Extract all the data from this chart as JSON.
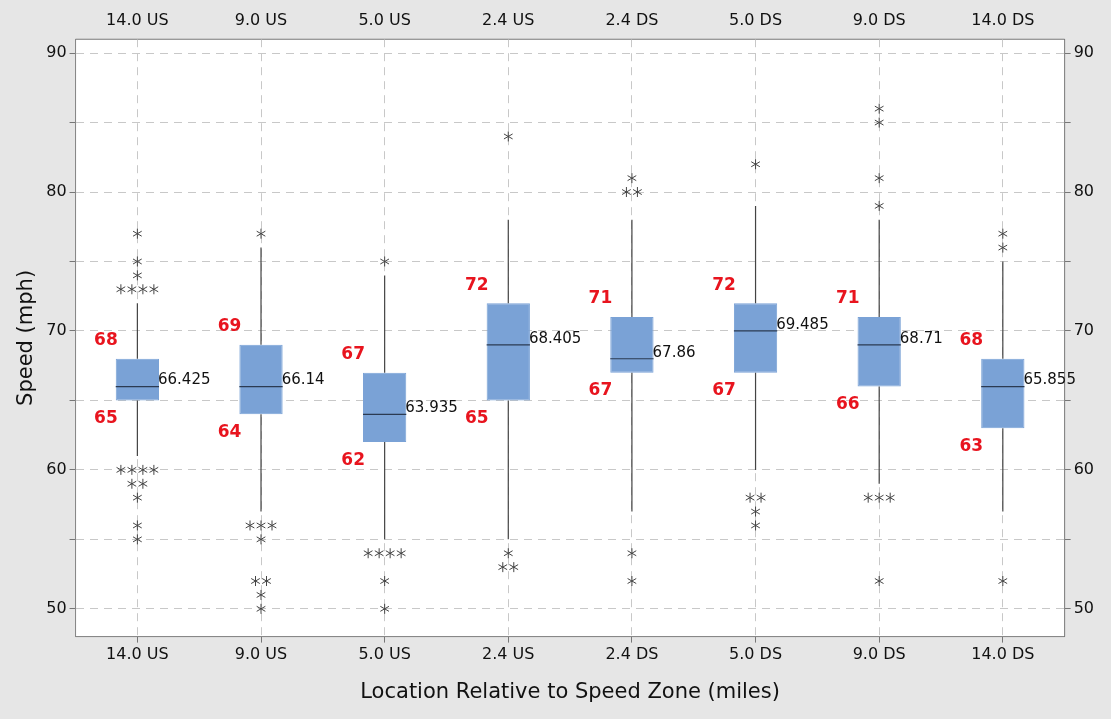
{
  "chart_data": {
    "type": "box",
    "categories": [
      "14.0 US",
      "9.0 US",
      "5.0 US",
      "2.4 US",
      "2.4 DS",
      "5.0 DS",
      "9.0 DS",
      "14.0 DS"
    ],
    "xlabel": "Location Relative to Speed Zone (miles)",
    "ylabel": "Speed (mph)",
    "color": "#7aa2d6",
    "boxes": [
      {
        "low": 61,
        "q1": 65,
        "median": 66,
        "q3": 68,
        "high": 72,
        "outliers": [
          77,
          75,
          74,
          73,
          73,
          73,
          73,
          60,
          60,
          60,
          60,
          59,
          59,
          58,
          56,
          55
        ]
      },
      {
        "low": 57,
        "q1": 64,
        "median": 66,
        "q3": 69,
        "high": 76,
        "outliers": [
          77,
          56,
          56,
          56,
          55,
          52,
          52,
          51,
          50
        ]
      },
      {
        "low": 55,
        "q1": 62,
        "median": 64,
        "q3": 67,
        "high": 74,
        "outliers": [
          75,
          54,
          54,
          54,
          54,
          52,
          50
        ]
      },
      {
        "low": 55,
        "q1": 65,
        "median": 69,
        "q3": 72,
        "high": 78,
        "outliers": [
          84,
          54,
          53,
          53
        ]
      },
      {
        "low": 57,
        "q1": 67,
        "median": 68,
        "q3": 71,
        "high": 78,
        "outliers": [
          81,
          80,
          80,
          54,
          52
        ]
      },
      {
        "low": 60,
        "q1": 67,
        "median": 70,
        "q3": 72,
        "high": 79,
        "outliers": [
          82,
          58,
          58,
          57,
          56
        ]
      },
      {
        "low": 59,
        "q1": 66,
        "median": 69,
        "q3": 71,
        "high": 78,
        "outliers": [
          86,
          85,
          81,
          79,
          58,
          58,
          58,
          52
        ]
      },
      {
        "low": 57,
        "q1": 63,
        "median": 66,
        "q3": 68,
        "high": 75,
        "outliers": [
          77,
          76,
          52
        ]
      }
    ],
    "annotations": [
      {
        "text": "68",
        "x": "14.0 US",
        "y": 68
      },
      {
        "text": "65",
        "x": "14.0 US",
        "y": 65
      },
      "66.425",
      {
        "text": "69",
        "x": "9.0 US",
        "y": 69
      },
      {
        "text": "64",
        "x": "9.0 US",
        "y": 64
      },
      "66.14",
      {
        "text": "67",
        "x": "5.0 US",
        "y": 67
      },
      {
        "text": "62",
        "x": "5.0 US",
        "y": 62
      },
      "63.935",
      {
        "text": "72",
        "x": "2.4 US",
        "y": 72
      },
      {
        "text": "65",
        "x": "2.4 US",
        "y": 65
      },
      "68.405",
      {
        "text": "71",
        "x": "2.4 DS",
        "y": 71
      },
      {
        "text": "67",
        "x": "2.4 DS",
        "y": 67
      },
      "67.86",
      {
        "text": "72",
        "x": "5.0 DS",
        "y": 72
      },
      {
        "text": "67",
        "x": "5.0 DS",
        "y": 67
      },
      "69.485",
      {
        "text": "71",
        "x": "9.0 DS",
        "y": 71
      },
      {
        "text": "66",
        "x": "9.0 DS",
        "y": 66
      },
      "68.71",
      {
        "text": "68",
        "x": "14.0 DS",
        "y": 68
      },
      {
        "text": "63",
        "x": "14.0 DS",
        "y": 63
      },
      "65.855"
    ],
    "marker": "star",
    "ylim": [
      48,
      91
    ],
    "yticks": [
      50,
      {
        "value": 55,
        "label": null
      },
      60,
      {
        "value": 65,
        "label": null
      },
      70,
      {
        "value": 75,
        "label": null
      },
      80,
      {
        "value": 85,
        "label": null
      },
      90
    ],
    "y2lim": [
      48,
      91
    ],
    "y2ticks": [
      50,
      {
        "value": 55,
        "label": null
      },
      60,
      {
        "value": 65,
        "label": null
      },
      70,
      {
        "value": 75,
        "label": null
      },
      80,
      {
        "value": 85,
        "label": null
      },
      90
    ],
    "grid": true,
    "legend": false
  }
}
